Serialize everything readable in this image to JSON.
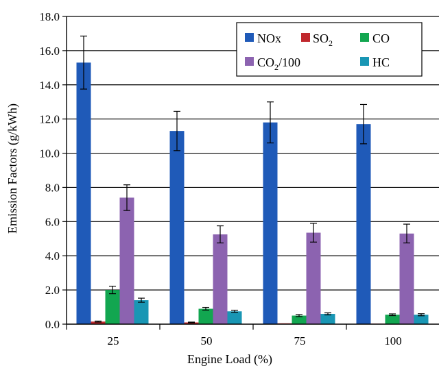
{
  "chart_data": {
    "type": "bar",
    "title": "",
    "xlabel": "Engine Load (%)",
    "ylabel": "Emission Factors (g/kWh)",
    "ylim": [
      0,
      18
    ],
    "y_ticks": [
      "0.0",
      "2.0",
      "4.0",
      "6.0",
      "8.0",
      "10.0",
      "12.0",
      "14.0",
      "16.0",
      "18.0"
    ],
    "grid": "horizontal",
    "legend_position": "top-right",
    "categories": [
      "25",
      "50",
      "75",
      "100"
    ],
    "series": [
      {
        "name": "NOx",
        "color": "#1f5ab8",
        "values": [
          15.3,
          11.3,
          11.8,
          11.7
        ],
        "errors": [
          1.55,
          1.15,
          1.2,
          1.15
        ]
      },
      {
        "name": "SO2",
        "color": "#c0282d",
        "values": [
          0.15,
          0.1,
          0.05,
          0.03
        ],
        "errors": [
          0.03,
          0.02,
          0.0,
          0.0
        ]
      },
      {
        "name": "CO",
        "color": "#12a650",
        "values": [
          2.0,
          0.9,
          0.5,
          0.55
        ],
        "errors": [
          0.22,
          0.08,
          0.06,
          0.05
        ]
      },
      {
        "name": "CO2/100",
        "color": "#8c63b0",
        "values": [
          7.4,
          5.25,
          5.35,
          5.3
        ],
        "errors": [
          0.75,
          0.5,
          0.55,
          0.55
        ]
      },
      {
        "name": "HC",
        "color": "#1996b4",
        "values": [
          1.4,
          0.75,
          0.6,
          0.55
        ],
        "errors": [
          0.12,
          0.06,
          0.06,
          0.06
        ]
      }
    ],
    "legend_labels": [
      {
        "main": "NOx",
        "sub": ""
      },
      {
        "main": "SO",
        "sub": "2"
      },
      {
        "main": "CO",
        "sub": ""
      },
      {
        "main": "CO",
        "sub": "2",
        "suffix": "/100"
      },
      {
        "main": "HC",
        "sub": ""
      }
    ]
  }
}
